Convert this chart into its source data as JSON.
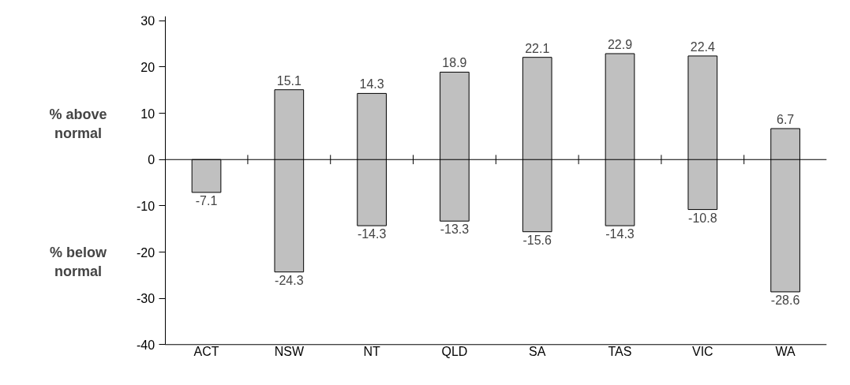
{
  "chart_data": {
    "type": "bar",
    "categories": [
      "ACT",
      "NSW",
      "NT",
      "QLD",
      "SA",
      "TAS",
      "VIC",
      "WA"
    ],
    "base": [
      -7.1,
      -24.3,
      -14.3,
      -13.3,
      -15.6,
      -14.3,
      -10.8,
      -28.6
    ],
    "values": [
      7.1,
      39.4,
      28.6,
      32.2,
      37.7,
      37.2,
      33.2,
      35.3
    ],
    "color": "#c0c0c0",
    "ylim": [
      -40,
      31
    ],
    "yticks": [
      -40,
      -30,
      -20,
      -10,
      0,
      10,
      20,
      30
    ],
    "grid": false,
    "ref_lines": [
      {
        "axis": "y",
        "value": 0,
        "label": null,
        "color": "#000000"
      }
    ],
    "annotations": [
      "% above\nnormal",
      "% below\nnormal",
      {
        "text": "-7.1",
        "x": "ACT",
        "y": -7.1
      },
      {
        "text": "15.1",
        "x": "NSW",
        "y": 15.1
      },
      {
        "text": "-24.3",
        "x": "NSW",
        "y": -24.3
      },
      {
        "text": "14.3",
        "x": "NT",
        "y": 14.3
      },
      {
        "text": "-14.3",
        "x": "NT",
        "y": -14.3
      },
      {
        "text": "18.9",
        "x": "QLD",
        "y": 18.9
      },
      {
        "text": "-13.3",
        "x": "QLD",
        "y": -13.3
      },
      {
        "text": "22.1",
        "x": "SA",
        "y": 22.1
      },
      {
        "text": "-15.6",
        "x": "SA",
        "y": -15.6
      },
      {
        "text": "22.9",
        "x": "TAS",
        "y": 22.9
      },
      {
        "text": "-14.3",
        "x": "TAS",
        "y": -14.3
      },
      {
        "text": "22.4",
        "x": "VIC",
        "y": 22.4
      },
      {
        "text": "-10.8",
        "x": "VIC",
        "y": -10.8
      },
      {
        "text": "6.7",
        "x": "WA",
        "y": 6.7
      },
      {
        "text": "-28.6",
        "x": "WA",
        "y": -28.6
      }
    ]
  }
}
